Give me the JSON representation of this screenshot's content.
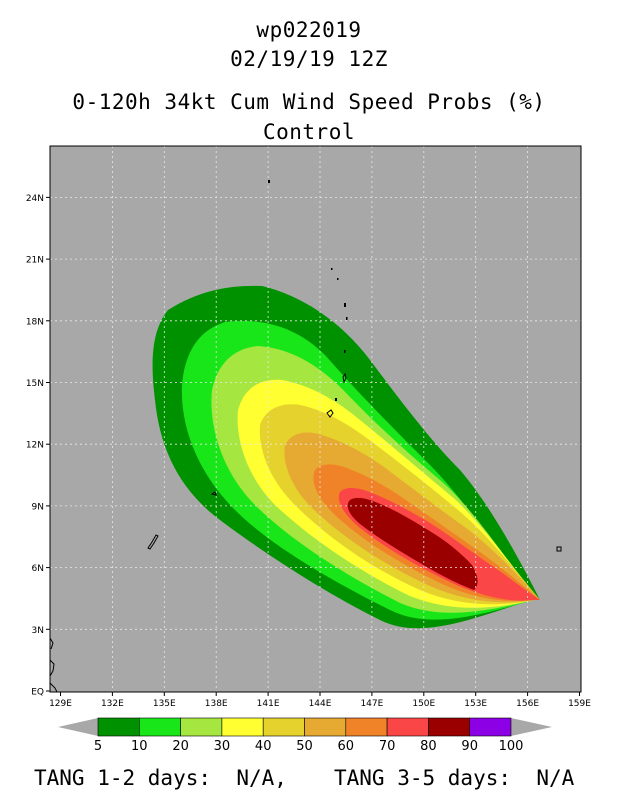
{
  "storm_id": "wp022019",
  "datetime": "02/19/19 12Z",
  "product_title": "0-120h 34kt Cum Wind Speed Probs (%)",
  "subtitle": "Control",
  "lat_labels": [
    "EQ",
    "3N",
    "6N",
    "9N",
    "12N",
    "15N",
    "18N",
    "21N",
    "24N"
  ],
  "lon_labels": [
    "129E",
    "132E",
    "135E",
    "138E",
    "141E",
    "144E",
    "147E",
    "150E",
    "153E",
    "156E",
    "159E"
  ],
  "colorbar": {
    "values": [
      "5",
      "10",
      "20",
      "30",
      "40",
      "50",
      "60",
      "70",
      "80",
      "90",
      "100"
    ],
    "colors": [
      "#009100",
      "#19e619",
      "#a5e640",
      "#ffff32",
      "#e6d22d",
      "#e6aa32",
      "#f08228",
      "#fa4646",
      "#9b0000",
      "#8c00e6"
    ]
  },
  "probability_levels": [
    5,
    10,
    20,
    30,
    40,
    50,
    60,
    70,
    80
  ],
  "background_color": "#a8a8a8",
  "footer": {
    "left_label": "TANG 1-2 days:",
    "left_value": "N/A,",
    "right_label": "TANG 3-5 days:",
    "right_value": "N/A"
  }
}
